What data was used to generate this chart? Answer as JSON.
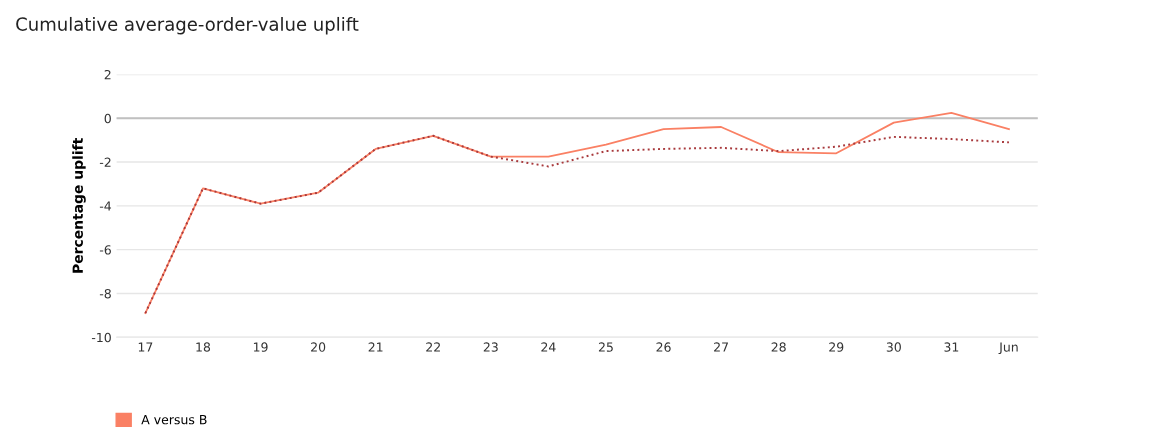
{
  "chart_data": {
    "type": "line",
    "title": "Cumulative average-order-value uplift",
    "ylabel": "Percentage uplift",
    "categories": [
      "17",
      "18",
      "19",
      "20",
      "21",
      "22",
      "23",
      "24",
      "25",
      "26",
      "27",
      "28",
      "29",
      "30",
      "31",
      "Jun"
    ],
    "series": [
      {
        "name": "A versus B",
        "color": "#fa8064",
        "line_style": "solid",
        "values": [
          -8.9,
          -3.2,
          -3.9,
          -3.4,
          -1.4,
          -0.8,
          -1.75,
          -1.75,
          -1.2,
          -0.5,
          -0.4,
          -1.55,
          -1.6,
          -0.2,
          0.25,
          -0.5
        ]
      },
      {
        "color": "#a8393c",
        "line_style": "dotted",
        "values": [
          -8.9,
          -3.2,
          -3.9,
          -3.4,
          -1.4,
          -0.8,
          -1.75,
          -2.2,
          -1.5,
          -1.4,
          -1.35,
          -1.5,
          -1.3,
          -0.85,
          -0.95,
          -1.1
        ]
      }
    ],
    "ylim": [
      -10,
      2
    ],
    "yticks": [
      -10,
      -8,
      -6,
      -4,
      -2,
      0,
      2
    ],
    "ref_lines": [
      {
        "axis": "y",
        "value": 0,
        "color": "#c0c0c0"
      }
    ],
    "grid": "y",
    "legend": "bottom left",
    "marker": "none"
  }
}
